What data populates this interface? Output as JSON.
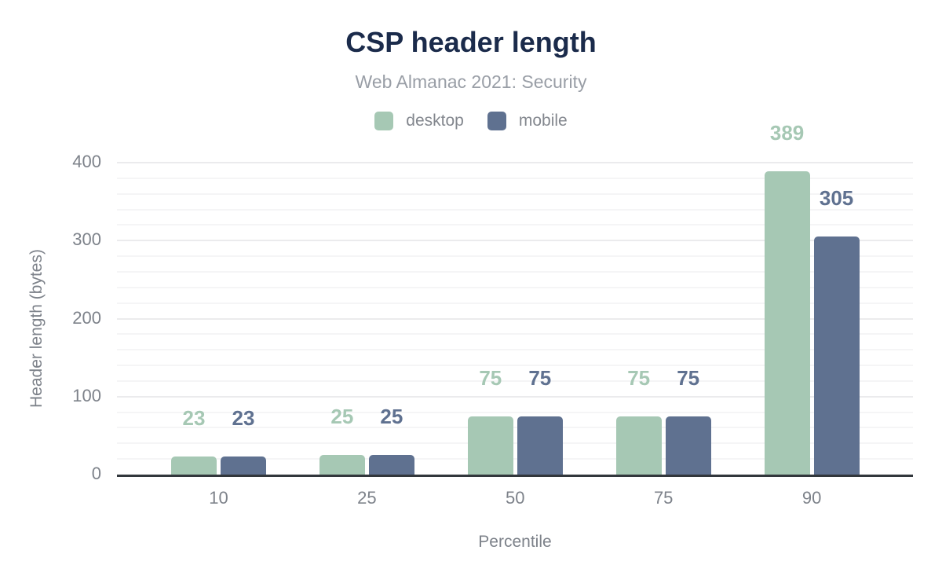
{
  "chart_data": {
    "type": "bar",
    "title": "CSP header length",
    "subtitle": "Web Almanac 2021: Security",
    "categories": [
      "10",
      "25",
      "50",
      "75",
      "90"
    ],
    "series": [
      {
        "name": "desktop",
        "color": "#a6c8b4",
        "values": [
          23,
          25,
          75,
          75,
          389
        ]
      },
      {
        "name": "mobile",
        "color": "#5f7190",
        "values": [
          23,
          25,
          75,
          75,
          305
        ]
      }
    ],
    "xlabel": "Percentile",
    "ylabel": "Header length (bytes)",
    "ylim": [
      0,
      400
    ],
    "yticks": [
      0,
      100,
      200,
      300,
      400
    ],
    "y_minor_step": 20,
    "grid": "horizontal-only",
    "legend_position": "top",
    "value_labels": "above-bars",
    "colors": {
      "title": "#1b2b4b",
      "subtitle": "#999ea6",
      "axis_text": "#7d828a",
      "legend_text": "#83878e",
      "axis_line": "#32373c",
      "grid_minor": "#f5f5f6",
      "grid_major": "#ebebed",
      "background": "#ffffff"
    }
  }
}
